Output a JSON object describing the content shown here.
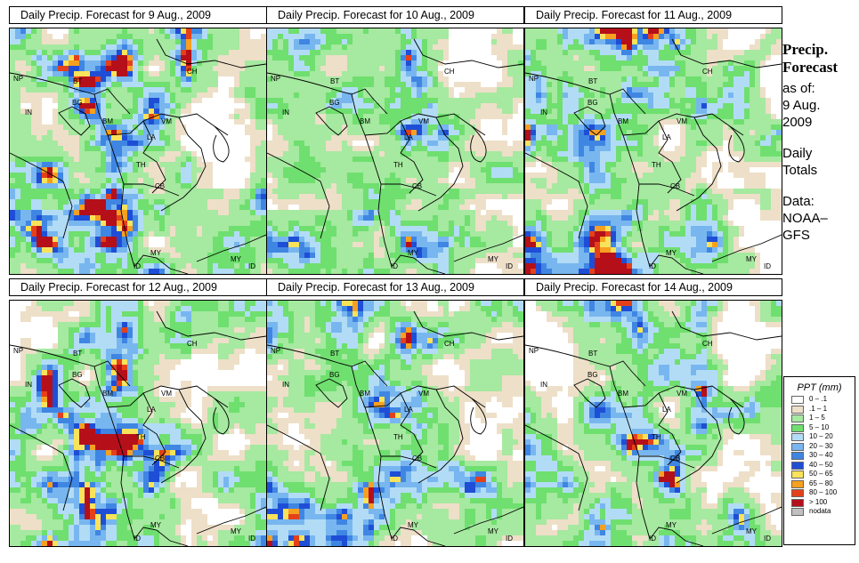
{
  "panels": [
    {
      "title": "Daily Precip. Forecast for  9 Aug., 2009",
      "seed": 11
    },
    {
      "title": "Daily Precip. Forecast for  10 Aug., 2009",
      "seed": 27
    },
    {
      "title": "Daily Precip. Forecast for  11 Aug., 2009",
      "seed": 43
    },
    {
      "title": "Daily Precip. Forecast for  12 Aug., 2009",
      "seed": 59
    },
    {
      "title": "Daily Precip. Forecast for  13 Aug., 2009",
      "seed": 71
    },
    {
      "title": "Daily Precip. Forecast for  14 Aug., 2009",
      "seed": 89
    }
  ],
  "country_labels": [
    "NP",
    "BT",
    "BG",
    "IN",
    "BM",
    "CH",
    "VM",
    "LA",
    "TH",
    "CB",
    "MY",
    "ID",
    "MY",
    "ID"
  ],
  "sidebar": {
    "title_line1": "Precip.",
    "title_line2": "Forecast",
    "asof_line1": "as of:",
    "asof_line2": "9 Aug.",
    "asof_line3": "2009",
    "totals_line1": "Daily",
    "totals_line2": "Totals",
    "data_line1": "Data:",
    "data_line2": "NOAA–",
    "data_line3": "GFS"
  },
  "legend": {
    "title": "PPT (mm)",
    "items": [
      {
        "label": "0 – .1",
        "color": "#ffffff"
      },
      {
        "label": ".1 – 1",
        "color": "#eedfc8"
      },
      {
        "label": "1 – 5",
        "color": "#a6e9a0"
      },
      {
        "label": "5 – 10",
        "color": "#6fdf6f"
      },
      {
        "label": "10 – 20",
        "color": "#b2dcf6"
      },
      {
        "label": "20 – 30",
        "color": "#78b6ef"
      },
      {
        "label": "30 – 40",
        "color": "#3f86e3"
      },
      {
        "label": "40 – 50",
        "color": "#1f4ed6"
      },
      {
        "label": "50 – 65",
        "color": "#f8e35a"
      },
      {
        "label": "65 – 80",
        "color": "#f7a020"
      },
      {
        "label": "80 – 100",
        "color": "#e4411a"
      },
      {
        "label": "> 100",
        "color": "#b50f1a"
      },
      {
        "label": "nodata",
        "color": "#c0c0c0"
      }
    ]
  }
}
